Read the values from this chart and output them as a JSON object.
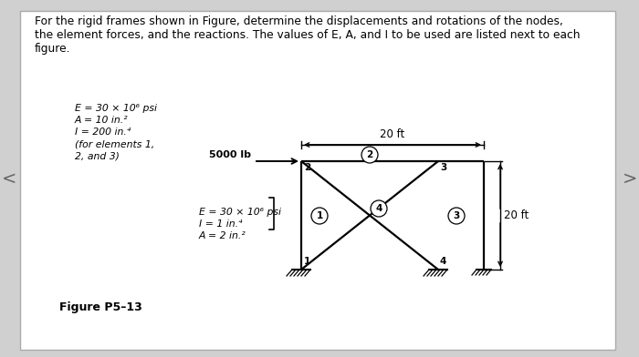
{
  "title_line1": "For the rigid frames shown in Figure, determine the displacements and rotations of the nodes,",
  "title_line2": "the element forces, and the reactions. The values of E, A, and I to be used are listed next to each",
  "title_line3": "figure.",
  "figure_label": "Figure P5–13",
  "bg_color": "#d0d0d0",
  "panel_color": "#ffffff",
  "load_label": "5000 lb",
  "dim_label": "20 ft",
  "height_label": "20 ft",
  "props_top_lines": [
    "E = 30 × 10⁶ psi",
    "A = 10 in.²",
    "I = 200 in.⁴",
    "(for elements 1,",
    "2, and 3)"
  ],
  "props_bot_lines": [
    "E = 30 × 10⁶ psi",
    "I = 1 in.⁴",
    "A = 2 in.²"
  ]
}
